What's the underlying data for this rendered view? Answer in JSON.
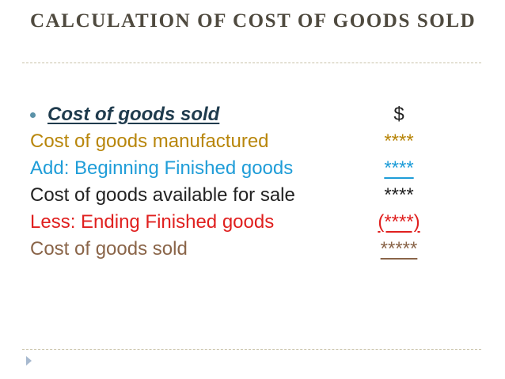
{
  "slide": {
    "title": "CALCULATION OF COST OF GOODS SOLD"
  },
  "heading": {
    "label": "Cost of goods sold",
    "currency": "$"
  },
  "rows": [
    {
      "label": "Cost of goods manufactured",
      "value": "****",
      "color": "#b8860b"
    },
    {
      "label": "Add: Beginning Finished goods",
      "value": "****",
      "color": "#1f9dd8"
    },
    {
      "label": "Cost of goods available for sale",
      "value": "****",
      "color": "#222222"
    },
    {
      "label": "Less: Ending Finished goods",
      "value": "(****)",
      "color": "#e0201f"
    },
    {
      "label": "Cost of goods sold",
      "value": "*****",
      "color": "#8a6549"
    }
  ],
  "icons": {
    "bullet": "bullet-dot-icon",
    "nav": "triangle-right-icon"
  }
}
